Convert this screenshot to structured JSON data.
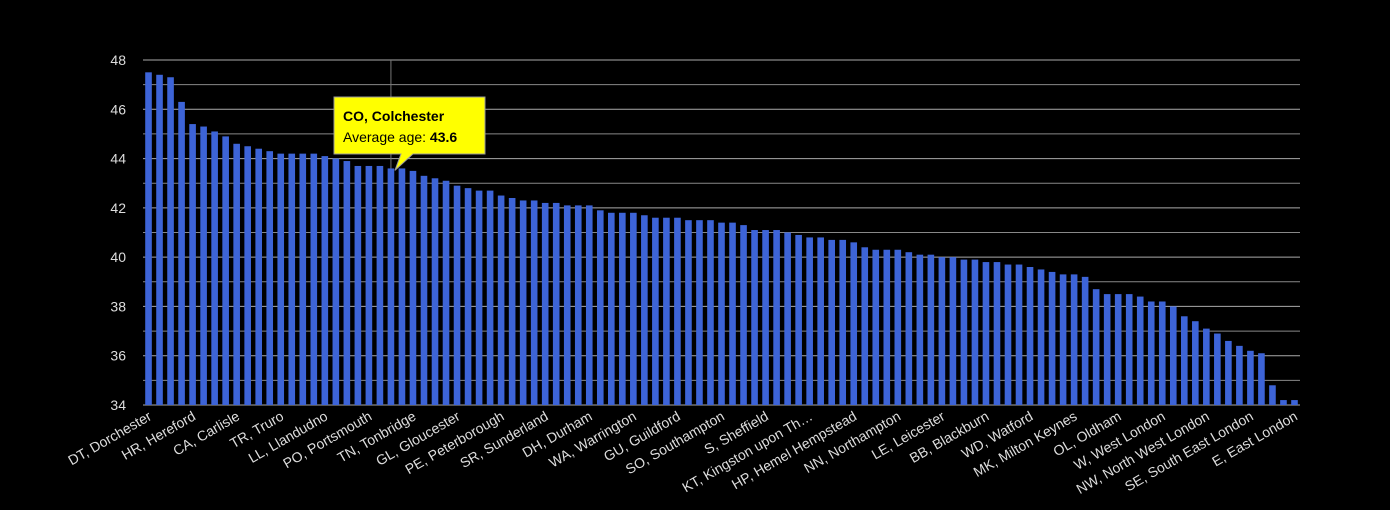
{
  "chart_data": {
    "type": "bar",
    "categories": [
      "DT, Dorchester",
      null,
      null,
      null,
      "HR, Hereford",
      null,
      null,
      null,
      "CA, Carlisle",
      null,
      null,
      null,
      "TR, Truro",
      null,
      null,
      null,
      "LL, Llandudno",
      null,
      null,
      null,
      "PO, Portsmouth",
      null,
      null,
      null,
      "TN, Tonbridge",
      null,
      null,
      null,
      "GL, Gloucester",
      null,
      null,
      null,
      "PE, Peterborough",
      null,
      null,
      null,
      "SR, Sunderland",
      null,
      null,
      null,
      "DH, Durham",
      null,
      null,
      null,
      "WA, Warrington",
      null,
      null,
      null,
      "GU, Guildford",
      null,
      null,
      null,
      "SO, Southampton",
      null,
      null,
      null,
      "S, Sheffield",
      null,
      null,
      null,
      "KT, Kingston upon Th…",
      null,
      null,
      null,
      "HP, Hemel Hempstead",
      null,
      null,
      null,
      "NN, Northampton",
      null,
      null,
      null,
      "LE, Leicester",
      null,
      null,
      null,
      "BB, Blackburn",
      null,
      null,
      null,
      "WD, Watford",
      null,
      null,
      null,
      "MK, Milton Keynes",
      null,
      null,
      null,
      "OL, Oldham",
      null,
      null,
      null,
      "W, West London",
      null,
      null,
      null,
      "NW, North West London",
      null,
      null,
      null,
      "SE, South East London",
      null,
      null,
      null,
      "E, East London"
    ],
    "values": [
      47.5,
      47.4,
      47.3,
      46.3,
      45.4,
      45.3,
      45.1,
      44.9,
      44.6,
      44.5,
      44.4,
      44.3,
      44.2,
      44.2,
      44.2,
      44.2,
      44.1,
      44.0,
      43.9,
      43.7,
      43.7,
      43.7,
      43.6,
      43.6,
      43.5,
      43.3,
      43.2,
      43.1,
      42.9,
      42.8,
      42.7,
      42.7,
      42.5,
      42.4,
      42.3,
      42.3,
      42.2,
      42.2,
      42.1,
      42.1,
      42.1,
      41.9,
      41.8,
      41.8,
      41.8,
      41.7,
      41.6,
      41.6,
      41.6,
      41.5,
      41.5,
      41.5,
      41.4,
      41.4,
      41.3,
      41.1,
      41.1,
      41.1,
      41.0,
      40.9,
      40.8,
      40.8,
      40.7,
      40.7,
      40.6,
      40.4,
      40.3,
      40.3,
      40.3,
      40.2,
      40.1,
      40.1,
      40.0,
      40.0,
      39.9,
      39.9,
      39.8,
      39.8,
      39.7,
      39.7,
      39.6,
      39.5,
      39.4,
      39.3,
      39.3,
      39.2,
      38.7,
      38.5,
      38.5,
      38.5,
      38.4,
      38.2,
      38.2,
      38.0,
      37.6,
      37.4,
      37.1,
      36.9,
      36.6,
      36.4,
      36.2,
      36.1,
      34.8,
      34.2,
      34.2
    ],
    "color": "#3d64d8",
    "ylim": [
      34,
      48
    ],
    "yticks": [
      34,
      36,
      38,
      40,
      42,
      44,
      46,
      48
    ],
    "minor_yticks": [
      35,
      37,
      39,
      41,
      43,
      45,
      47
    ],
    "grid": true,
    "tooltip": {
      "index": 22,
      "title": "CO, Colchester",
      "label": "Average age:",
      "value": 43.6
    }
  }
}
